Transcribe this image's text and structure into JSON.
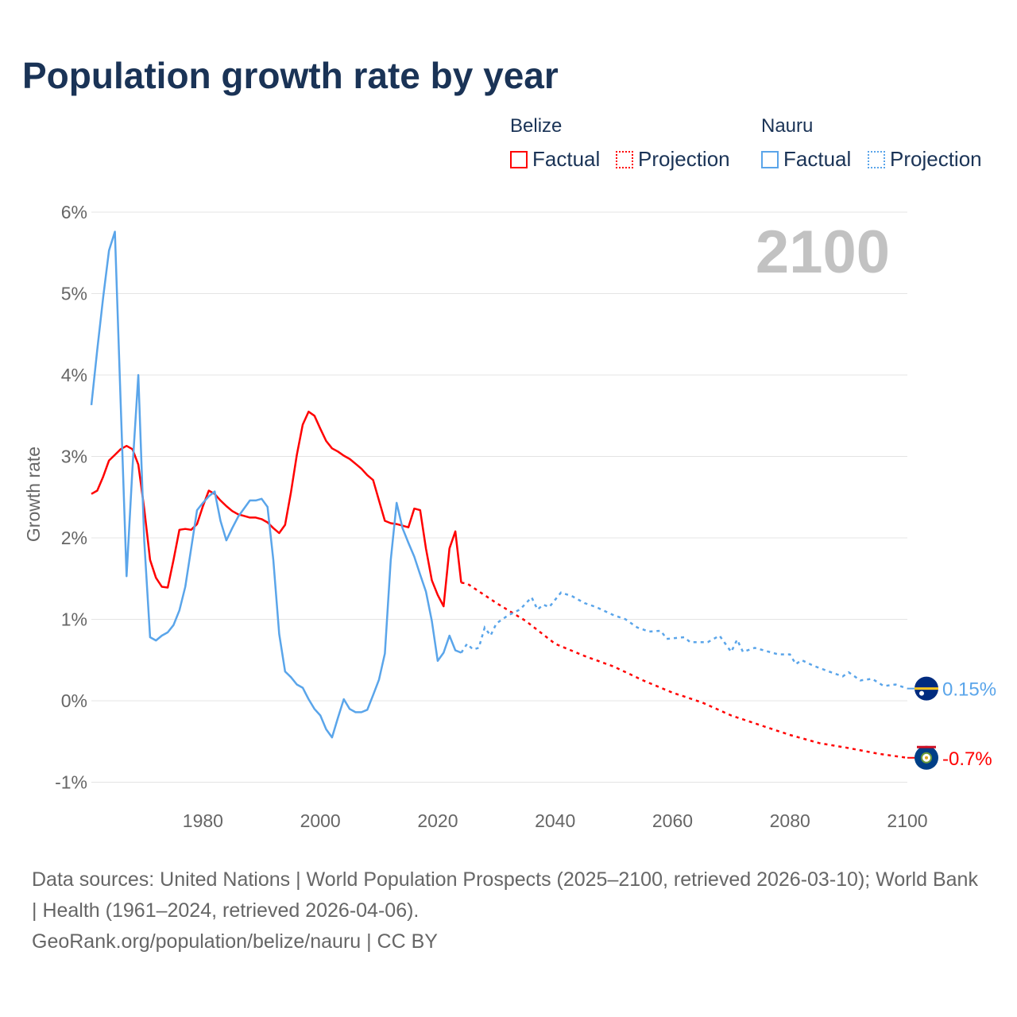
{
  "chart_data": {
    "type": "line",
    "title": "Population growth rate by year",
    "ylabel": "Growth rate",
    "xlabel": "",
    "xlim": [
      1961,
      2100
    ],
    "ylim": [
      -1,
      6
    ],
    "x_ticks": [
      1980,
      2000,
      2020,
      2040,
      2060,
      2080,
      2100
    ],
    "x_tick_labels": [
      "1980",
      "2000",
      "2020",
      "2040",
      "2060",
      "2080",
      "2100"
    ],
    "y_ticks": [
      -1,
      0,
      1,
      2,
      3,
      4,
      5,
      6
    ],
    "y_tick_labels": [
      "-1%",
      "0%",
      "1%",
      "2%",
      "3%",
      "4%",
      "5%",
      "6%"
    ],
    "grid": true,
    "year_watermark": "2100",
    "legend": {
      "placement": "top-right",
      "groups": [
        {
          "name": "Belize",
          "items": [
            "Factual",
            "Projection"
          ]
        },
        {
          "name": "Nauru",
          "items": [
            "Factual",
            "Projection"
          ]
        }
      ]
    },
    "series": [
      {
        "name": "Belize",
        "color": "#ff0000",
        "end_label": "-0.7%",
        "flag": "belize-flag",
        "factual": {
          "x": [
            1961,
            1962,
            1963,
            1964,
            1965,
            1966,
            1967,
            1968,
            1969,
            1970,
            1971,
            1972,
            1973,
            1974,
            1975,
            1976,
            1977,
            1978,
            1979,
            1980,
            1981,
            1982,
            1983,
            1984,
            1985,
            1986,
            1987,
            1988,
            1989,
            1990,
            1991,
            1992,
            1993,
            1994,
            1995,
            1996,
            1997,
            1998,
            1999,
            2000,
            2001,
            2002,
            2003,
            2004,
            2005,
            2006,
            2007,
            2008,
            2009,
            2010,
            2011,
            2012,
            2013,
            2014,
            2015,
            2016,
            2017,
            2018,
            2019,
            2020,
            2021,
            2022,
            2023,
            2024
          ],
          "y": [
            2.54,
            2.58,
            2.75,
            2.95,
            3.02,
            3.09,
            3.13,
            3.09,
            2.9,
            2.36,
            1.73,
            1.51,
            1.4,
            1.39,
            1.73,
            2.1,
            2.11,
            2.1,
            2.17,
            2.39,
            2.58,
            2.54,
            2.46,
            2.39,
            2.33,
            2.29,
            2.27,
            2.25,
            2.25,
            2.23,
            2.19,
            2.12,
            2.06,
            2.16,
            2.56,
            3.02,
            3.39,
            3.55,
            3.5,
            3.34,
            3.19,
            3.1,
            3.06,
            3.01,
            2.97,
            2.91,
            2.85,
            2.77,
            2.71,
            2.46,
            2.21,
            2.18,
            2.17,
            2.15,
            2.13,
            2.36,
            2.34,
            1.87,
            1.48,
            1.3,
            1.16,
            1.87,
            2.08,
            1.45
          ]
        },
        "projection": {
          "x": [
            2024,
            2025,
            2030,
            2035,
            2040,
            2045,
            2050,
            2055,
            2060,
            2065,
            2070,
            2075,
            2080,
            2085,
            2090,
            2095,
            2100
          ],
          "y": [
            1.45,
            1.44,
            1.2,
            0.98,
            0.7,
            0.55,
            0.42,
            0.25,
            0.1,
            -0.02,
            -0.18,
            -0.3,
            -0.42,
            -0.52,
            -0.58,
            -0.65,
            -0.7
          ]
        }
      },
      {
        "name": "Nauru",
        "color": "#5aa5ea",
        "end_label": "0.15%",
        "flag": "nauru-flag",
        "factual": {
          "x": [
            1961,
            1962,
            1963,
            1964,
            1965,
            1966,
            1967,
            1968,
            1969,
            1970,
            1971,
            1972,
            1973,
            1974,
            1975,
            1976,
            1977,
            1978,
            1979,
            1980,
            1981,
            1982,
            1983,
            1984,
            1985,
            1986,
            1987,
            1988,
            1989,
            1990,
            1991,
            1992,
            1993,
            1994,
            1995,
            1996,
            1997,
            1998,
            1999,
            2000,
            2001,
            2002,
            2003,
            2004,
            2005,
            2006,
            2007,
            2008,
            2009,
            2010,
            2011,
            2012,
            2013,
            2014,
            2015,
            2016,
            2017,
            2018,
            2019,
            2020,
            2021,
            2022,
            2023,
            2024
          ],
          "y": [
            3.63,
            4.31,
            4.95,
            5.53,
            5.76,
            3.65,
            1.53,
            2.85,
            4.0,
            1.97,
            0.78,
            0.74,
            0.8,
            0.84,
            0.93,
            1.11,
            1.4,
            1.87,
            2.34,
            2.43,
            2.51,
            2.57,
            2.21,
            1.97,
            2.12,
            2.26,
            2.36,
            2.46,
            2.46,
            2.48,
            2.38,
            1.73,
            0.82,
            0.36,
            0.29,
            0.2,
            0.16,
            0.02,
            -0.1,
            -0.18,
            -0.35,
            -0.45,
            -0.21,
            0.02,
            -0.1,
            -0.14,
            -0.14,
            -0.11,
            0.07,
            0.26,
            0.58,
            1.73,
            2.43,
            2.12,
            1.94,
            1.77,
            1.55,
            1.34,
            0.98,
            0.49,
            0.59,
            0.8,
            0.62,
            0.59
          ]
        },
        "projection": {
          "x": [
            2024,
            2025,
            2026,
            2027,
            2028,
            2029,
            2030,
            2032,
            2034,
            2036,
            2037,
            2038,
            2039,
            2041,
            2043,
            2045,
            2047,
            2050,
            2052,
            2054,
            2056,
            2058,
            2059,
            2062,
            2063,
            2066,
            2068,
            2070,
            2071,
            2072,
            2074,
            2078,
            2080,
            2081,
            2082,
            2084,
            2087,
            2089,
            2090,
            2092,
            2094,
            2096,
            2098,
            2100
          ],
          "y": [
            0.59,
            0.7,
            0.63,
            0.65,
            0.9,
            0.8,
            0.95,
            1.05,
            1.12,
            1.27,
            1.12,
            1.18,
            1.15,
            1.33,
            1.28,
            1.2,
            1.15,
            1.05,
            1.0,
            0.9,
            0.85,
            0.86,
            0.76,
            0.78,
            0.72,
            0.72,
            0.8,
            0.6,
            0.75,
            0.6,
            0.65,
            0.57,
            0.57,
            0.45,
            0.5,
            0.43,
            0.35,
            0.3,
            0.35,
            0.25,
            0.27,
            0.18,
            0.2,
            0.15
          ]
        }
      }
    ]
  },
  "footer": {
    "sources": "Data sources: United Nations | World Population Prospects (2025–2100, retrieved 2026-03-10); World Bank | Health (1961–2024, retrieved 2026-04-06).",
    "credit": "GeoRank.org/population/belize/nauru | CC BY"
  }
}
